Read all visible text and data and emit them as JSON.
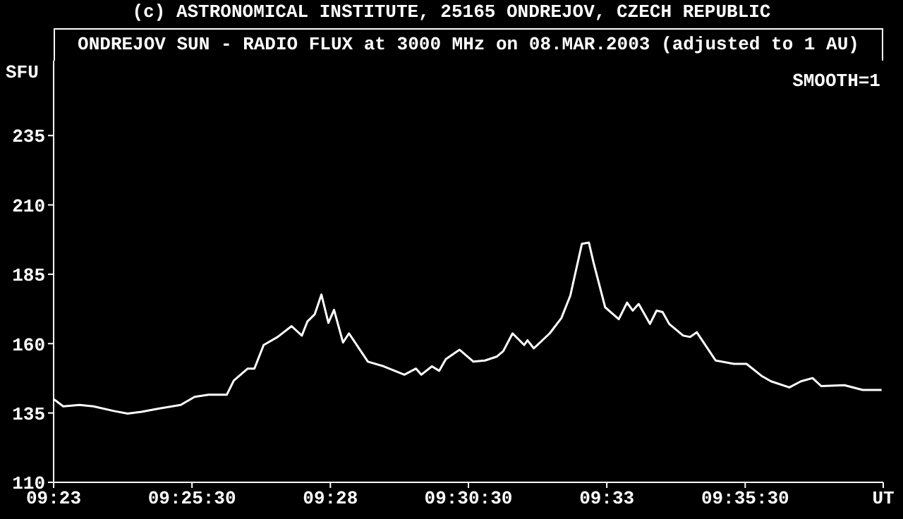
{
  "chart_data": {
    "type": "line",
    "title": "(c) ASTRONOMICAL INSTITUTE, 25165 ONDREJOV, CZECH REPUBLIC",
    "subtitle": "ONDREJOV SUN - RADIO FLUX at 3000 MHz on 08.MAR.2003 (adjusted to 1 AU)",
    "ylabel": "SFU",
    "annotations": [
      "SMOOTH=1"
    ],
    "x": [
      9.3833,
      9.3862,
      9.3911,
      9.3953,
      9.4015,
      9.4056,
      9.4098,
      9.4146,
      9.4216,
      9.4258,
      9.43,
      9.4355,
      9.4376,
      9.4418,
      9.4438,
      9.4466,
      9.4508,
      9.455,
      9.4581,
      9.4598,
      9.462,
      9.464,
      9.4661,
      9.4678,
      9.4705,
      9.4723,
      9.478,
      9.4828,
      9.489,
      9.4925,
      9.4941,
      9.4973,
      9.4995,
      9.5015,
      9.5056,
      9.5098,
      9.5133,
      9.5168,
      9.5188,
      9.5216,
      9.5251,
      9.5261,
      9.528,
      9.5328,
      9.5363,
      9.539,
      9.5425,
      9.5446,
      9.546,
      9.5495,
      9.5536,
      9.5561,
      9.5578,
      9.5596,
      9.563,
      9.565,
      9.5668,
      9.5688,
      9.573,
      9.5751,
      9.5771,
      9.5828,
      9.5883,
      9.5921,
      9.5966,
      9.5995,
      9.605,
      9.6085,
      9.612,
      9.6146,
      9.6216,
      9.6271,
      9.6328
    ],
    "series": [
      {
        "color": "#ffffff",
        "values": [
          140,
          137.4,
          137.9,
          137.4,
          135.7,
          134.8,
          135.4,
          136.5,
          137.9,
          140.8,
          141.6,
          141.6,
          146.7,
          151,
          151,
          159.5,
          162.4,
          166.3,
          162.9,
          168,
          170.6,
          177.7,
          167.5,
          172.2,
          160.4,
          163.7,
          153.5,
          151.8,
          148.8,
          151,
          148.8,
          151.8,
          150.2,
          154.4,
          157.8,
          153.5,
          153.9,
          155.3,
          157.3,
          163.7,
          159.5,
          161.2,
          158.3,
          163.7,
          169.2,
          177.3,
          196,
          196.4,
          189.2,
          173.1,
          168.8,
          174.8,
          171.9,
          174.3,
          167.1,
          171.9,
          171.4,
          167.1,
          162.9,
          162.4,
          164.1,
          153.9,
          152.7,
          152.7,
          148.4,
          146.4,
          144.2,
          146.4,
          147.6,
          144.7,
          145,
          143.3,
          143.3
        ]
      }
    ],
    "xlim": [
      9.3833,
      9.6333
    ],
    "xticks": [
      {
        "value": 9.3833,
        "label": "09:23"
      },
      {
        "value": 9.425,
        "label": "09:25:30"
      },
      {
        "value": 9.4667,
        "label": "09:28"
      },
      {
        "value": 9.5083,
        "label": "09:30:30"
      },
      {
        "value": 9.55,
        "label": "09:33"
      },
      {
        "value": 9.5917,
        "label": "09:35:30"
      },
      {
        "value": 9.6333,
        "label": "UT"
      }
    ],
    "ylim": [
      110,
      262
    ],
    "yticks": [
      110,
      135,
      160,
      185,
      210,
      235
    ],
    "grid": false,
    "marker": "none",
    "line_style": "solid"
  }
}
